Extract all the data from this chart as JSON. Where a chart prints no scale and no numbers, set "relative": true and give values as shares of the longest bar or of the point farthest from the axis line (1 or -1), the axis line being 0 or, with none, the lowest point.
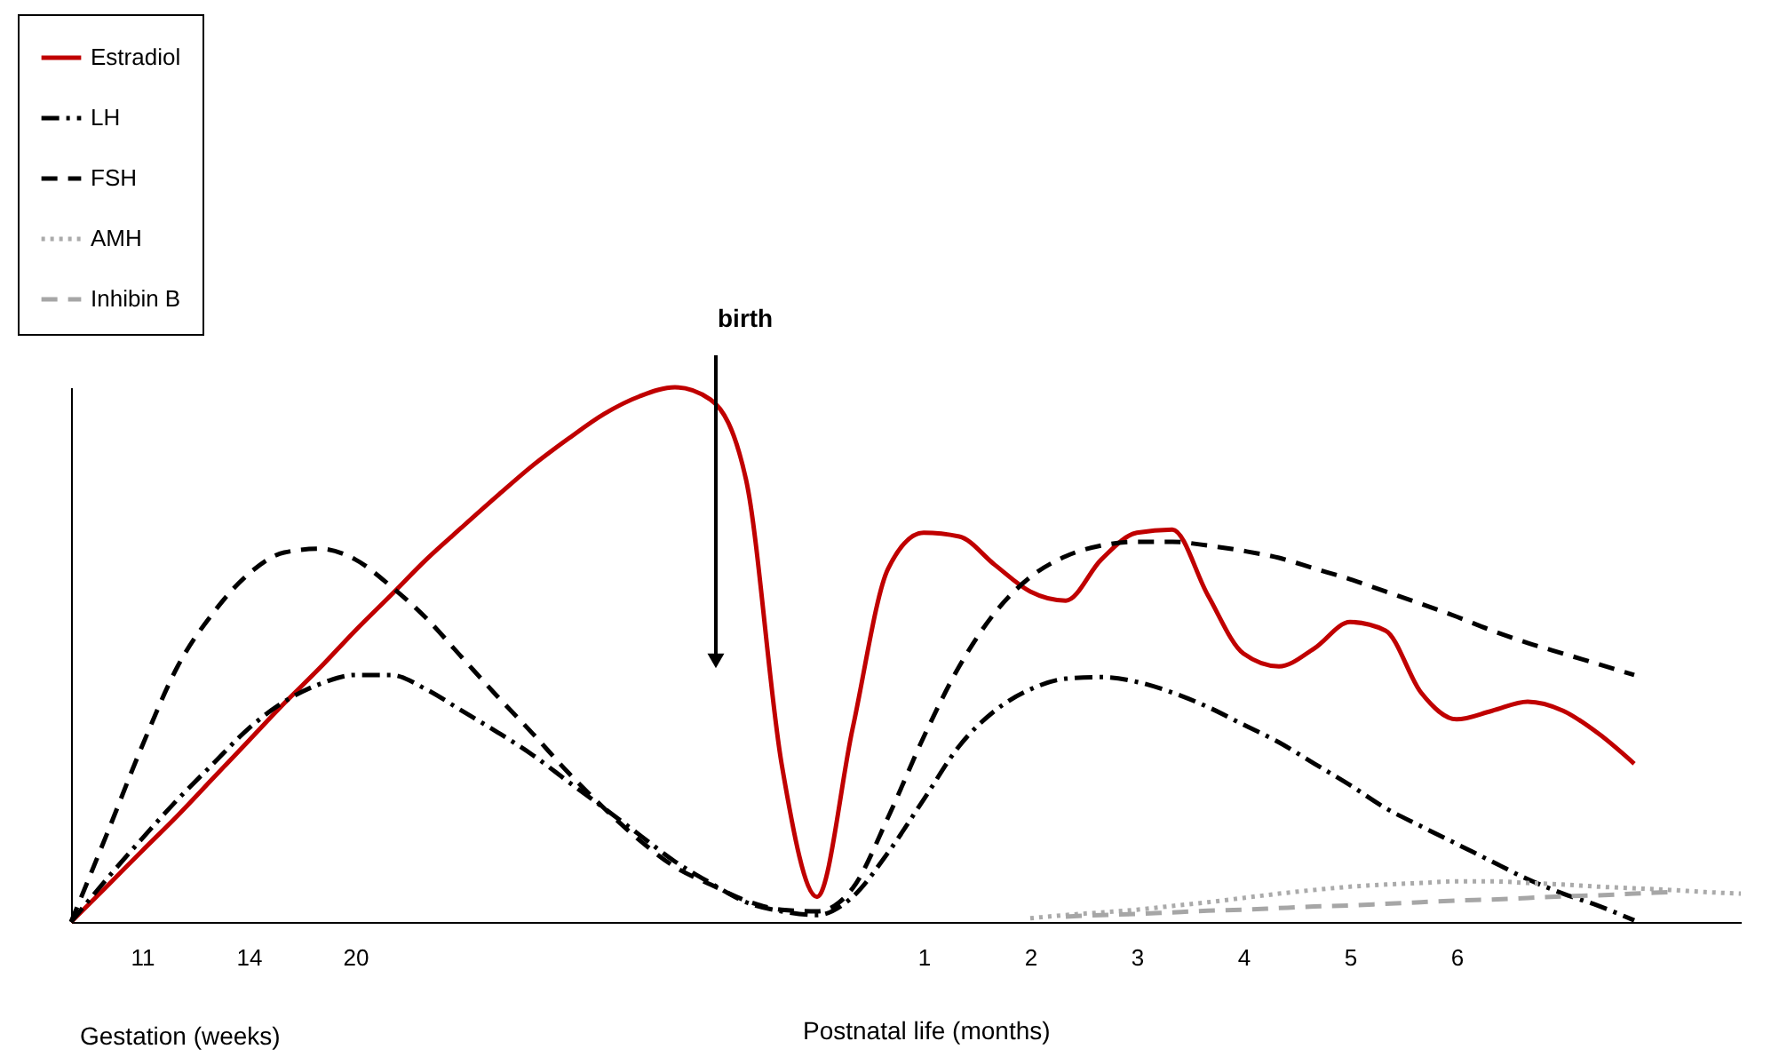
{
  "chart_data": {
    "type": "line",
    "relative": true,
    "categories": [
      null,
      null,
      "11",
      null,
      null,
      "14",
      null,
      null,
      "20",
      null,
      null,
      null,
      null,
      null,
      null,
      null,
      null,
      null,
      null,
      null,
      null,
      null,
      null,
      null,
      "1",
      null,
      null,
      "2",
      null,
      null,
      "3",
      null,
      null,
      "4",
      null,
      null,
      "5",
      null,
      null,
      "6",
      null,
      null,
      null,
      null,
      null,
      null,
      null,
      null
    ],
    "series": [
      {
        "name": "Estradiol",
        "color": "#c00000",
        "line_style": "solid",
        "values": [
          0,
          0.066,
          0.133,
          0.199,
          0.269,
          0.339,
          0.409,
          0.475,
          0.545,
          0.611,
          0.678,
          0.738,
          0.797,
          0.854,
          0.904,
          0.95,
          0.983,
          1,
          0.977,
          0.827,
          0.296,
          0.047,
          0.362,
          0.661,
          0.728,
          0.721,
          0.668,
          0.618,
          0.601,
          0.678,
          0.728,
          0.734,
          0.611,
          0.502,
          0.478,
          0.512,
          0.561,
          0.545,
          0.429,
          0.379,
          0.395,
          0.412,
          0.395,
          0.352,
          0.296,
          null,
          null,
          null
        ]
      },
      {
        "name": "LH",
        "color": "#000000",
        "line_style": "dashdot",
        "values": [
          0,
          0.08,
          0.156,
          0.229,
          0.296,
          0.362,
          0.412,
          0.445,
          0.462,
          0.462,
          0.435,
          0.395,
          0.355,
          0.312,
          0.262,
          0.213,
          0.163,
          0.113,
          0.073,
          0.037,
          0.02,
          0.013,
          0.047,
          0.13,
          0.229,
          0.329,
          0.395,
          0.435,
          0.455,
          0.458,
          0.449,
          0.429,
          0.402,
          0.369,
          0.336,
          0.296,
          0.256,
          0.213,
          0.179,
          0.146,
          0.113,
          0.08,
          0.053,
          0.03,
          0.003,
          null,
          null,
          null
        ]
      },
      {
        "name": "FSH",
        "color": "#000000",
        "line_style": "dashed",
        "values": [
          0,
          0.163,
          0.329,
          0.478,
          0.578,
          0.651,
          0.691,
          0.698,
          0.678,
          0.628,
          0.568,
          0.495,
          0.422,
          0.352,
          0.279,
          0.213,
          0.153,
          0.103,
          0.07,
          0.04,
          0.023,
          0.02,
          0.063,
          0.196,
          0.346,
          0.478,
          0.578,
          0.645,
          0.684,
          0.704,
          0.711,
          0.711,
          0.704,
          0.694,
          0.681,
          0.661,
          0.641,
          0.618,
          0.595,
          0.571,
          0.545,
          0.522,
          0.502,
          0.482,
          0.462,
          null,
          null,
          null
        ]
      },
      {
        "name": "AMH",
        "color": "#aaaaaa",
        "line_style": "dotted",
        "values": [
          null,
          null,
          null,
          null,
          null,
          null,
          null,
          null,
          null,
          null,
          null,
          null,
          null,
          null,
          null,
          null,
          null,
          null,
          null,
          null,
          null,
          null,
          null,
          null,
          null,
          null,
          null,
          0.007,
          0.013,
          0.018,
          0.023,
          0.03,
          0.037,
          0.045,
          0.053,
          0.06,
          0.066,
          0.07,
          0.073,
          0.076,
          0.076,
          0.073,
          0.07,
          0.066,
          0.063,
          0.06,
          0.056,
          0.053
        ]
      },
      {
        "name": "Inhibin B",
        "color": "#a6a6a6",
        "line_style": "dashed",
        "values": [
          null,
          null,
          null,
          null,
          null,
          null,
          null,
          null,
          null,
          null,
          null,
          null,
          null,
          null,
          null,
          null,
          null,
          null,
          null,
          null,
          null,
          null,
          null,
          null,
          null,
          null,
          null,
          null,
          0.01,
          0.013,
          0.015,
          0.018,
          0.021,
          0.023,
          0.026,
          0.029,
          0.031,
          0.034,
          0.037,
          0.04,
          0.042,
          0.045,
          0.048,
          0.05,
          0.053,
          0.056,
          null,
          null
        ]
      }
    ],
    "legend": "top left",
    "annotations": [
      "birth",
      "Gestation (weeks)",
      "Postnatal life (months)"
    ]
  }
}
